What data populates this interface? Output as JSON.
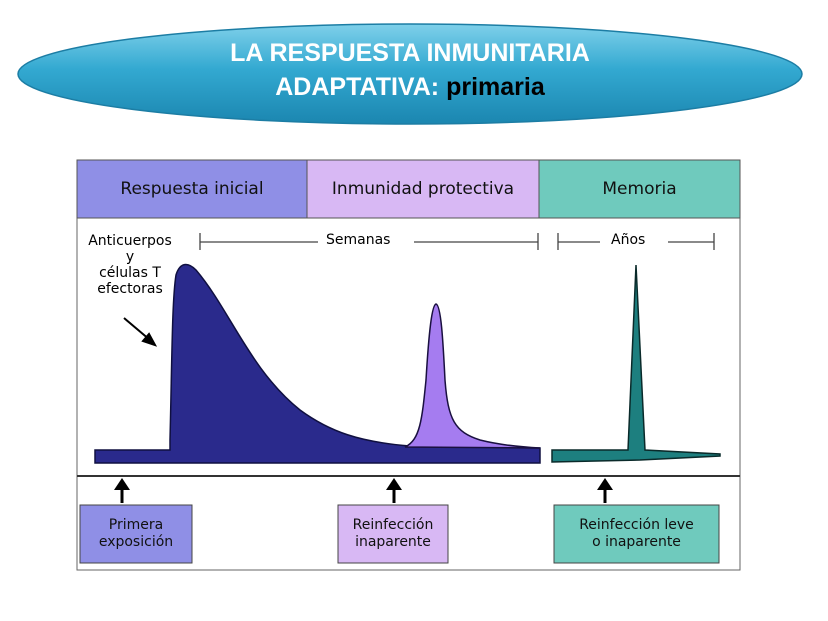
{
  "title": {
    "line1": "LA RESPUESTA INMUNITARIA",
    "line2_prefix": "ADAPTATIVA: ",
    "line2_emphasis": "primaria"
  },
  "phases": [
    {
      "label": "Respuesta inicial",
      "color": "#8f8fe6"
    },
    {
      "label": "Inmunidad protectiva",
      "color": "#d8b8f4"
    },
    {
      "label": "Memoria",
      "color": "#6fcabd"
    }
  ],
  "curve_label": "Anticuerpos\ny\ncélulas T\nefectoras",
  "time_scales": [
    {
      "label": "Semanas"
    },
    {
      "label": "Años"
    }
  ],
  "events": [
    {
      "label": "Primera\nexposición",
      "color": "#8f8fe6"
    },
    {
      "label": "Reinfección\ninaparente",
      "color": "#d8b8f4"
    },
    {
      "label": "Reinfección leve\no inaparente",
      "color": "#6fcabd"
    }
  ],
  "colors": {
    "title_oval": "#31a9cf",
    "primary_response": "#2a2a8c",
    "secondary_response": "#a57cf0",
    "memory_response": "#1d7f7f"
  }
}
